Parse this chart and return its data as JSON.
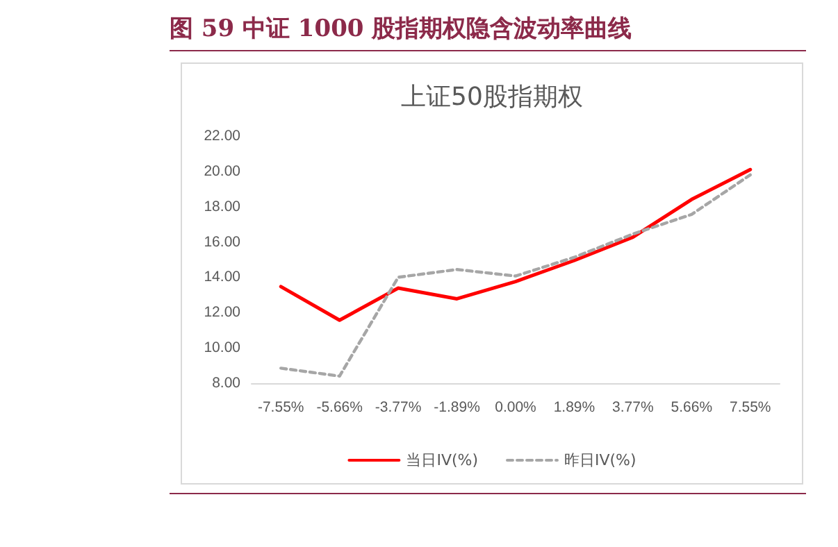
{
  "chart_data": {
    "type": "line",
    "title": "图 59    中证 1000 股指期权隐含波动率曲线",
    "subtitle": "上证50股指期权",
    "categories": [
      "-7.55%",
      "-5.66%",
      "-3.77%",
      "-1.89%",
      "0.00%",
      "1.89%",
      "3.77%",
      "5.66%",
      "7.55%"
    ],
    "series": [
      {
        "name": "当日IV(%)",
        "color": "#ff0000",
        "line_style": "solid",
        "values": [
          13.47,
          11.57,
          13.39,
          12.78,
          13.76,
          14.95,
          16.27,
          18.41,
          20.1
        ]
      },
      {
        "name": "昨日IV(%)",
        "color": "#a6a6a6",
        "line_style": "dashed",
        "values": [
          8.85,
          8.4,
          14.0,
          14.44,
          14.07,
          15.13,
          16.45,
          17.56,
          19.8
        ]
      }
    ],
    "ylim": [
      8,
      22
    ],
    "yticks": [
      {
        "value": 8,
        "label": "8.00"
      },
      {
        "value": 10,
        "label": "10.00"
      },
      {
        "value": 12,
        "label": "12.00"
      },
      {
        "value": 14,
        "label": "14.00"
      },
      {
        "value": 16,
        "label": "16.00"
      },
      {
        "value": 18,
        "label": "18.00"
      },
      {
        "value": 20,
        "label": "20.00"
      },
      {
        "value": 22,
        "label": "22.00"
      }
    ],
    "grid": false,
    "legend": "bottom",
    "marker": "none"
  }
}
